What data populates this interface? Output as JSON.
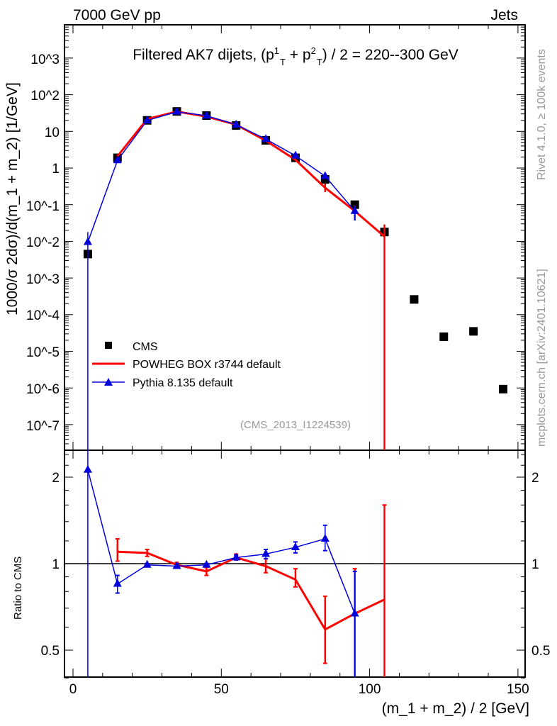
{
  "header": {
    "left": "7000 GeV pp",
    "right": "Jets"
  },
  "side_labels": {
    "rivet": "Rivet 4.1.0, ≥ 100k events",
    "mcplots": "mcplots.cern.ch [arXiv:2401.10621]"
  },
  "title_parts": {
    "a": "Filtered AK7 dijets, (p",
    "sup1": "1",
    "sub1": "T",
    "b": " + p",
    "sup2": "2",
    "sub2": "T",
    "c": ") / 2 = 220--300 GeV"
  },
  "analysis_id": "(CMS_2013_I1224539)",
  "colors": {
    "cms": "#000000",
    "powheg": "#ff0000",
    "pythia": "#0000dd"
  },
  "chart_data": {
    "type": "line",
    "title": "Filtered AK7 dijets, (pT1 + pT2) / 2 = 220--300 GeV",
    "xlabel": "(m_1 + m_2) / 2 [GeV]",
    "ylabel": "1000/σ  2dσ)/d(m_1 + m_2) [1/GeV]",
    "ratio_ylabel": "Ratio to CMS",
    "xlim": [
      -3,
      152
    ],
    "ylim": [
      1.2e-08,
      8500
    ],
    "yscale": "log",
    "ratio_ylim": [
      0.4,
      2.48
    ],
    "x_ticks": [
      "0",
      "50",
      "100",
      "150"
    ],
    "y_ticks": [
      "10^3",
      "10^2",
      "10",
      "1",
      "10^-1",
      "10^-2",
      "10^-3",
      "10^-4",
      "10^-5",
      "10^-6",
      "10^-7"
    ],
    "ratio_ticks": [
      "0.5",
      "1",
      "2"
    ],
    "legend_position": "lower-left",
    "x": [
      5,
      15,
      25,
      35,
      45,
      55,
      65,
      75,
      85,
      95,
      105,
      115,
      125,
      135,
      145
    ],
    "series": [
      {
        "name": "CMS",
        "marker": "square",
        "values": [
          0.0045,
          1.9,
          20,
          35,
          27,
          14.5,
          5.7,
          1.9,
          0.49,
          0.1,
          0.018,
          0.00026,
          2.5e-05,
          3.5e-05,
          9.3e-07
        ]
      },
      {
        "name": "POWHEG BOX r3744 default",
        "marker": "line",
        "ratio": [
          null,
          1.1,
          1.09,
          0.99,
          0.94,
          1.05,
          0.98,
          0.88,
          0.59,
          0.67,
          0.75,
          null,
          null,
          null,
          null
        ],
        "ratio_err": [
          null,
          [
            1.02,
            1.22
          ],
          [
            1.06,
            1.12
          ],
          [
            0.97,
            1.01
          ],
          [
            0.91,
            0.97
          ],
          [
            1.03,
            1.08
          ],
          [
            0.93,
            1.04
          ],
          [
            0.83,
            0.96
          ],
          [
            0.45,
            0.77
          ],
          [
            0.37,
            0.96
          ],
          [
            0.0,
            1.6
          ],
          null,
          null,
          null,
          null
        ]
      },
      {
        "name": "Pythia 8.135 default",
        "marker": "triangle",
        "ratio": [
          2.12,
          0.85,
          0.99,
          0.98,
          0.99,
          1.05,
          1.08,
          1.14,
          1.22,
          0.67,
          null,
          null,
          null,
          null,
          null
        ],
        "ratio_err": [
          [
            0.0,
            4.0
          ],
          [
            0.79,
            0.91
          ],
          [
            0.98,
            1.0
          ],
          [
            0.97,
            0.99
          ],
          [
            0.98,
            1.0
          ],
          [
            1.03,
            1.07
          ],
          [
            1.04,
            1.12
          ],
          [
            1.09,
            1.19
          ],
          [
            1.11,
            1.36
          ],
          [
            0.37,
            0.94
          ],
          null,
          null,
          null,
          null,
          null
        ]
      }
    ]
  }
}
